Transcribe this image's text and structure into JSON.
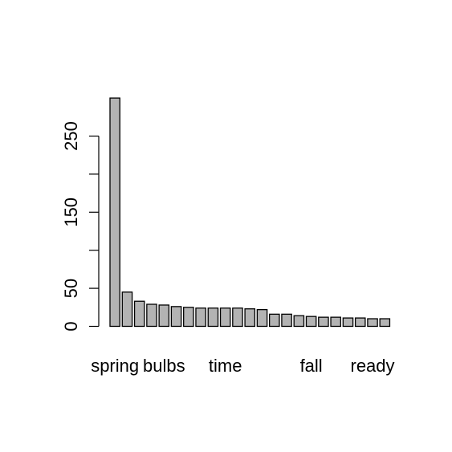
{
  "chart_data": {
    "type": "bar",
    "title": "",
    "xlabel": "",
    "ylabel": "",
    "ylim": [
      0,
      300
    ],
    "yticks": [
      0,
      50,
      150,
      250
    ],
    "grid": false,
    "bar_color": "#b3b3b3",
    "border_color": "#000000",
    "x_labels": [
      {
        "index": 0,
        "text": "spring"
      },
      {
        "index": 4,
        "text": "bulbs"
      },
      {
        "index": 9,
        "text": "time"
      },
      {
        "index": 16,
        "text": "fall"
      },
      {
        "index": 21,
        "text": "ready"
      }
    ],
    "values": [
      300,
      45,
      33,
      29,
      28,
      26,
      25,
      24,
      24,
      24,
      24,
      23,
      22,
      16,
      16,
      14,
      13,
      12,
      12,
      11,
      11,
      10,
      10
    ]
  }
}
